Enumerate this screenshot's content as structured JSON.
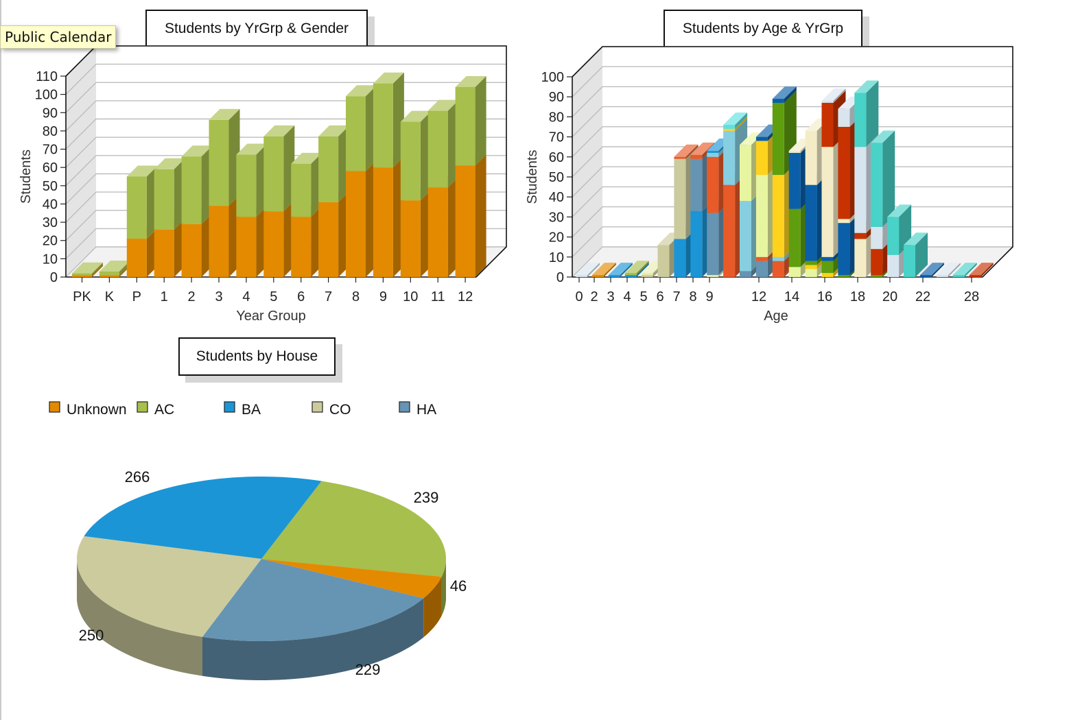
{
  "tooltip": {
    "label": "Public Calendar"
  },
  "colors": {
    "unknown": "#e38a00",
    "ac": "#a7bf4c",
    "ba": "#1b95d6",
    "co": "#cccb9d",
    "ha": "#6694b3"
  },
  "chart_data": [
    {
      "type": "bar",
      "stacked": true,
      "title": "Students by YrGrp & Gender",
      "xlabel": "Year Group",
      "ylabel": "Students",
      "ylim": [
        0,
        110
      ],
      "yticks": [
        0,
        10,
        20,
        30,
        40,
        50,
        60,
        70,
        80,
        90,
        100,
        110
      ],
      "grid": true,
      "categories": [
        "PK",
        "K",
        "P",
        "1",
        "2",
        "3",
        "4",
        "5",
        "6",
        "7",
        "8",
        "9",
        "10",
        "11",
        "12"
      ],
      "series": [
        {
          "color": "#e38a00",
          "values": [
            1,
            1,
            21,
            26,
            29,
            39,
            33,
            36,
            33,
            41,
            58,
            60,
            42,
            49,
            61
          ]
        },
        {
          "color": "#a7bf4c",
          "values": [
            1,
            2,
            34,
            33,
            37,
            47,
            34,
            41,
            29,
            36,
            41,
            46,
            43,
            42,
            43
          ]
        }
      ]
    },
    {
      "type": "bar",
      "stacked": true,
      "title": "Students by Age & YrGrp",
      "xlabel": "Age",
      "ylabel": "Students",
      "ylim": [
        0,
        100
      ],
      "yticks": [
        0,
        10,
        20,
        30,
        40,
        50,
        60,
        70,
        80,
        90,
        100
      ],
      "grid": true,
      "tick_labels": [
        "0",
        "2",
        "3",
        "4",
        "5",
        "6",
        "7",
        "8",
        "9",
        "12",
        "14",
        "16",
        "18",
        "20",
        "22",
        "28"
      ],
      "bars": [
        {
          "segments": [
            [
              1,
              "#d8e4ee"
            ]
          ]
        },
        {
          "segments": [
            [
              1,
              "#e38a00"
            ]
          ]
        },
        {
          "segments": [
            [
              1,
              "#1b95d6"
            ]
          ]
        },
        {
          "segments": [
            [
              1,
              "#1b95d6"
            ],
            [
              1,
              "#a7bf4c"
            ]
          ]
        },
        {
          "segments": [
            [
              1,
              "#cccb9d"
            ],
            [
              1,
              "#e8ecb0"
            ]
          ]
        },
        {
          "segments": [
            [
              16,
              "#cccb9d"
            ]
          ]
        },
        {
          "segments": [
            [
              19,
              "#1b95d6"
            ],
            [
              40,
              "#cccb9d"
            ],
            [
              1,
              "#e85a28"
            ]
          ]
        },
        {
          "segments": [
            [
              33,
              "#1b95d6"
            ],
            [
              26,
              "#6694b3"
            ],
            [
              2,
              "#e85a28"
            ]
          ]
        },
        {
          "segments": [
            [
              1,
              "#e8ecb0"
            ],
            [
              31,
              "#6694b3"
            ],
            [
              28,
              "#e85a28"
            ],
            [
              2,
              "#87cfe0"
            ],
            [
              1,
              "#1b95d6"
            ]
          ]
        },
        {
          "segments": [
            [
              46,
              "#e85a28"
            ],
            [
              27,
              "#87cfe0"
            ],
            [
              1,
              "#ffd21e"
            ],
            [
              2,
              "#60e0e0"
            ]
          ]
        },
        {
          "segments": [
            [
              3,
              "#6694b3"
            ],
            [
              35,
              "#87cfe0"
            ],
            [
              28,
              "#e8f5a0"
            ]
          ]
        },
        {
          "segments": [
            [
              8,
              "#6694b3"
            ],
            [
              2,
              "#e85a28"
            ],
            [
              41,
              "#e8f5a0"
            ],
            [
              17,
              "#ffd21e"
            ],
            [
              2,
              "#0a5fa8"
            ]
          ]
        },
        {
          "segments": [
            [
              1,
              "#e85a28"
            ],
            [
              7,
              "#e85a28"
            ],
            [
              2,
              "#87cfe0"
            ],
            [
              41,
              "#ffd21e"
            ],
            [
              36,
              "#5f9e0e"
            ],
            [
              2,
              "#0a5fa8"
            ]
          ]
        },
        {
          "segments": [
            [
              5,
              "#e8f5a0"
            ],
            [
              29,
              "#5f9e0e"
            ],
            [
              28,
              "#0a5fa8"
            ],
            [
              1,
              "#f3ecc6"
            ]
          ]
        },
        {
          "segments": [
            [
              4,
              "#e8f5a0"
            ],
            [
              2,
              "#ffd21e"
            ],
            [
              2,
              "#5f9e0e"
            ],
            [
              38,
              "#0a5fa8"
            ],
            [
              27,
              "#f3ecc6"
            ]
          ]
        },
        {
          "segments": [
            [
              2,
              "#ffd21e"
            ],
            [
              6,
              "#5f9e0e"
            ],
            [
              2,
              "#0a5fa8"
            ],
            [
              55,
              "#f3ecc6"
            ],
            [
              22,
              "#c83200"
            ],
            [
              1,
              "#d8e4ee"
            ]
          ]
        },
        {
          "segments": [
            [
              1,
              "#5f9e0e"
            ],
            [
              26,
              "#0a5fa8"
            ],
            [
              2,
              "#f3ecc6"
            ],
            [
              46,
              "#c83200"
            ],
            [
              9,
              "#d8e4ee"
            ]
          ]
        },
        {
          "segments": [
            [
              19,
              "#f3ecc6"
            ],
            [
              3,
              "#c83200"
            ],
            [
              43,
              "#d8e4ee"
            ],
            [
              27,
              "#48d2c8"
            ]
          ]
        },
        {
          "segments": [
            [
              1,
              "#5f9e0e"
            ],
            [
              13,
              "#c83200"
            ],
            [
              11,
              "#d8e4ee"
            ],
            [
              42,
              "#48d2c8"
            ]
          ]
        },
        {
          "segments": [
            [
              11,
              "#d8e4ee"
            ],
            [
              19,
              "#48d2c8"
            ]
          ]
        },
        {
          "segments": [
            [
              16,
              "#48d2c8"
            ]
          ]
        },
        {
          "segments": [
            [
              1,
              "#0a5fa8"
            ]
          ]
        },
        {
          "segments": [
            [
              1,
              "#d8e4ee"
            ]
          ]
        },
        {
          "segments": [
            [
              1,
              "#48d2c8"
            ]
          ]
        },
        {
          "segments": [
            [
              1,
              "#c83200"
            ]
          ]
        }
      ]
    },
    {
      "type": "pie",
      "title": "Students by House",
      "legend_position": "top",
      "labels": [
        "Unknown",
        "AC",
        "BA",
        "CO",
        "HA"
      ],
      "values": [
        46,
        239,
        266,
        250,
        229
      ],
      "value_labels": [
        "46",
        "239",
        "266",
        "250",
        "229"
      ],
      "colors": [
        "#e38a00",
        "#a7bf4c",
        "#1b95d6",
        "#cccb9d",
        "#6694b3"
      ]
    }
  ]
}
